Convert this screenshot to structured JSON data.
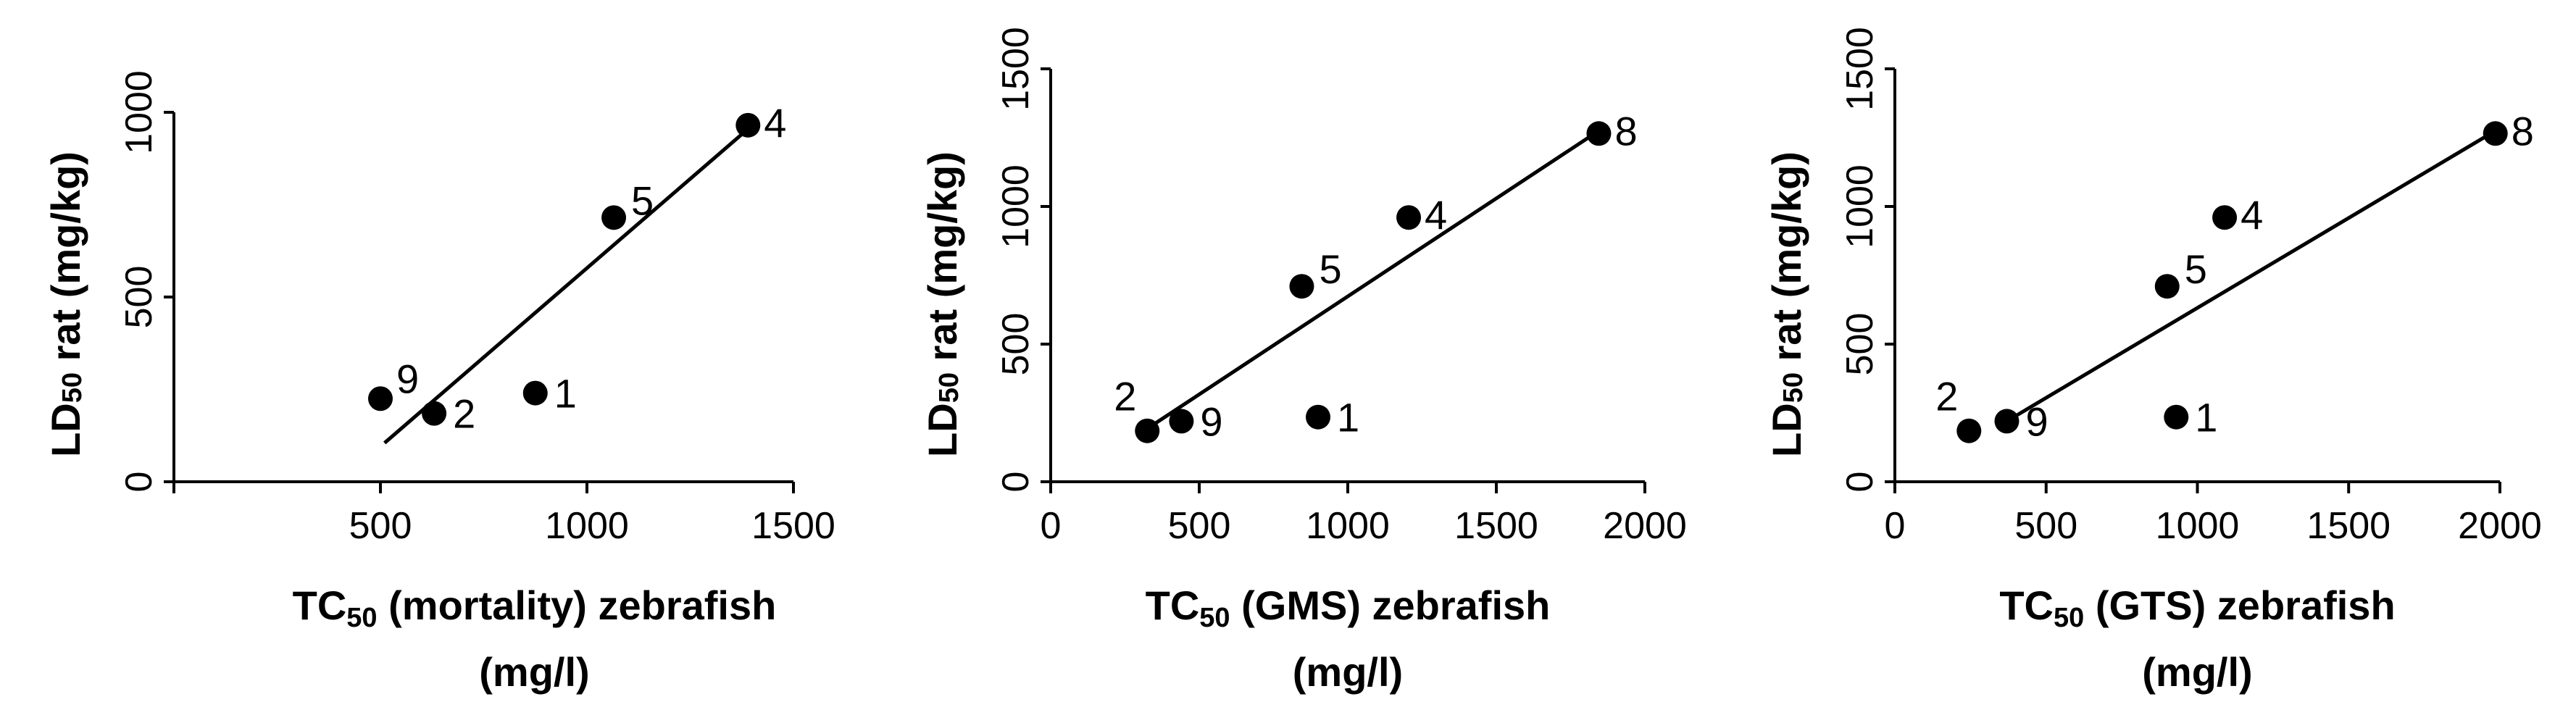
{
  "chart_data": [
    {
      "type": "scatter",
      "ylabel": {
        "main": "LD",
        "sub": "50",
        "rest": " rat (mg/kg)"
      },
      "xlabel": {
        "main": "TC",
        "sub": "50",
        "rest": " (mortality) zebrafish",
        "line2": "(mg/l)"
      },
      "xticks": [
        500,
        1000,
        1500
      ],
      "yticks": [
        0,
        500,
        1000
      ],
      "xlim": [
        0,
        1500
      ],
      "ylim": [
        0,
        1000
      ],
      "points": [
        {
          "label": "9",
          "x": 500,
          "y": 225
        },
        {
          "label": "2",
          "x": 630,
          "y": 185
        },
        {
          "label": "1",
          "x": 875,
          "y": 240
        },
        {
          "label": "5",
          "x": 1065,
          "y": 715
        },
        {
          "label": "4",
          "x": 1390,
          "y": 965
        }
      ],
      "trendline": [
        [
          510,
          105
        ],
        [
          1390,
          955
        ]
      ]
    },
    {
      "type": "scatter",
      "ylabel": {
        "main": "LD",
        "sub": "50",
        "rest": " rat (mg/kg)"
      },
      "xlabel": {
        "main": "TC",
        "sub": "50",
        "rest": " (GMS) zebrafish",
        "line2": "(mg/l)"
      },
      "xticks": [
        0,
        500,
        1000,
        1500,
        2000
      ],
      "yticks": [
        0,
        500,
        1000,
        1500
      ],
      "xlim": [
        0,
        2000
      ],
      "ylim": [
        0,
        1500
      ],
      "points": [
        {
          "label": "2",
          "x": 325,
          "y": 185
        },
        {
          "label": "9",
          "x": 440,
          "y": 220
        },
        {
          "label": "1",
          "x": 900,
          "y": 235
        },
        {
          "label": "5",
          "x": 845,
          "y": 710
        },
        {
          "label": "4",
          "x": 1205,
          "y": 960
        },
        {
          "label": "8",
          "x": 1845,
          "y": 1265
        }
      ],
      "trendline": [
        [
          335,
          200
        ],
        [
          1845,
          1275
        ]
      ]
    },
    {
      "type": "scatter",
      "ylabel": {
        "main": "LD",
        "sub": "50",
        "rest": " rat (mg/kg)"
      },
      "xlabel": {
        "main": "TC",
        "sub": "50",
        "rest": " (GTS) zebrafish",
        "line2": "(mg/l)"
      },
      "xticks": [
        0,
        500,
        1000,
        1500,
        2000
      ],
      "yticks": [
        0,
        500,
        1000,
        1500
      ],
      "xlim": [
        0,
        2000
      ],
      "ylim": [
        0,
        1500
      ],
      "points": [
        {
          "label": "2",
          "x": 245,
          "y": 185
        },
        {
          "label": "9",
          "x": 370,
          "y": 220
        },
        {
          "label": "1",
          "x": 930,
          "y": 235
        },
        {
          "label": "5",
          "x": 900,
          "y": 710
        },
        {
          "label": "4",
          "x": 1090,
          "y": 960
        },
        {
          "label": "8",
          "x": 1985,
          "y": 1265
        }
      ],
      "trendline": [
        [
          370,
          220
        ],
        [
          1985,
          1275
        ]
      ]
    }
  ]
}
